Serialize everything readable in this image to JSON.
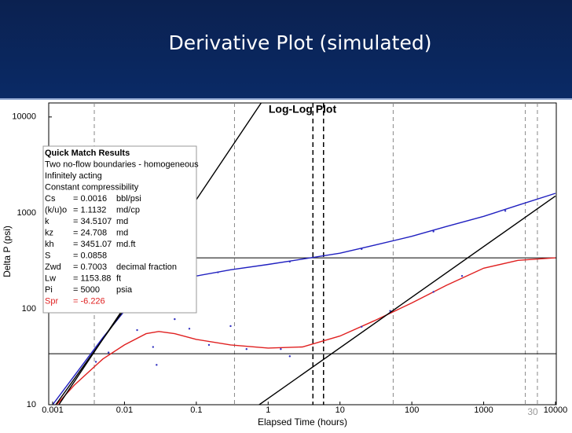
{
  "slide": {
    "title": "Derivative Plot (simulated)",
    "page": "30"
  },
  "chart_data": {
    "type": "line",
    "title": "Log-Log Plot",
    "x_label": "Elapsed Time (hours)",
    "y_label": "Delta P (psi)",
    "xlog": true,
    "ylog": true,
    "xlim": [
      0.001,
      10000
    ],
    "ylim": [
      10,
      14000
    ],
    "xticks": [
      0.001,
      0.01,
      0.1,
      1,
      10,
      100,
      1000,
      10000
    ],
    "yticks": [
      10,
      100,
      1000,
      10000
    ],
    "series": [
      {
        "mode": "line",
        "color": "#2020c0",
        "x": [
          0.001,
          0.002,
          0.005,
          0.01,
          0.02,
          0.05,
          0.1,
          0.3,
          1,
          3,
          10,
          30,
          100,
          300,
          1000,
          3000,
          10000
        ],
        "values": [
          10,
          20,
          50,
          95,
          140,
          190,
          220,
          255,
          290,
          330,
          380,
          460,
          570,
          720,
          920,
          1200,
          1600
        ]
      },
      {
        "mode": "line",
        "color": "#e02020",
        "x": [
          0.001,
          0.002,
          0.005,
          0.01,
          0.02,
          0.03,
          0.05,
          0.1,
          0.3,
          1,
          3,
          10,
          30,
          100,
          300,
          1000,
          3000,
          10000
        ],
        "values": [
          9,
          16,
          30,
          42,
          55,
          58,
          55,
          48,
          42,
          39,
          40,
          52,
          75,
          115,
          175,
          265,
          320,
          340
        ]
      },
      {
        "mode": "markers",
        "color": "#3030c0",
        "x": [
          0.004,
          0.006,
          0.015,
          0.025,
          0.028,
          0.05,
          0.08,
          0.15,
          0.3,
          0.5,
          1.5,
          2,
          20,
          50,
          200,
          500,
          0.2,
          2,
          20,
          200,
          2000
        ],
        "values": [
          28,
          35,
          60,
          40,
          26,
          78,
          62,
          42,
          66,
          38,
          38,
          32,
          65,
          95,
          150,
          220,
          240,
          310,
          420,
          640,
          1050
        ]
      },
      {
        "mode": "line",
        "color": "#000000",
        "x": [
          0.001,
          0.8
        ],
        "values": [
          8,
          14000
        ]
      },
      {
        "mode": "line",
        "color": "#000000",
        "x": [
          0.001,
          0.1
        ],
        "values": [
          9,
          1100
        ]
      },
      {
        "mode": "line",
        "color": "#000000",
        "x": [
          0.75,
          10000
        ],
        "values": [
          10,
          1500
        ]
      }
    ],
    "hlines": [
      340,
      34
    ],
    "vlines": [
      0.0038,
      0.34,
      55,
      3800,
      5600
    ],
    "vlines_bold": [
      4.2,
      5.9
    ],
    "match_results": {
      "title": "Quick Match Results",
      "notes": [
        "Two no-flow boundaries - homogeneous",
        "Infinitely acting",
        "Constant compressibility"
      ],
      "rows": [
        [
          "Cs",
          "= 0.0016",
          "bbl/psi"
        ],
        [
          "(k/u)o",
          "= 1.1132",
          "md/cp"
        ],
        [
          "k",
          "= 34.5107",
          "md"
        ],
        [
          "kz",
          "= 24.708",
          "md"
        ],
        [
          "kh",
          "= 3451.07",
          "md.ft"
        ],
        [
          "S",
          "= 0.0858",
          ""
        ],
        [
          "Zwd",
          "= 0.7003",
          "decimal fraction"
        ],
        [
          "Lw",
          "= 1153.88",
          "ft"
        ],
        [
          "Pi",
          "= 5000",
          "psia"
        ],
        [
          "Spr",
          "= -6.226",
          ""
        ]
      ],
      "highlight_color": "#e02020"
    }
  }
}
